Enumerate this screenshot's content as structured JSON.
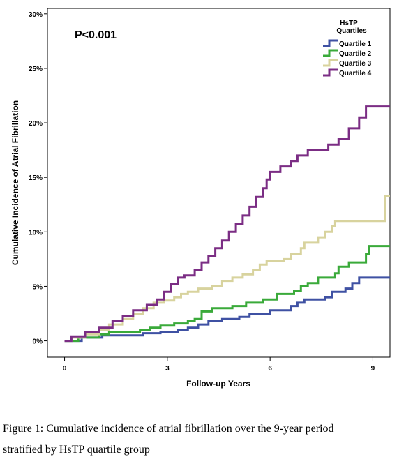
{
  "chart_data": {
    "type": "line",
    "step": true,
    "xlabel": "Follow-up Years",
    "ylabel": "Cumulative Incidence of Atrial Fibrillation",
    "xlim": [
      -0.5,
      9.5
    ],
    "ylim": [
      -0.015,
      0.305
    ],
    "xticks": [
      0,
      3,
      6,
      9
    ],
    "xtick_labels": [
      "0",
      "3",
      "6",
      "9"
    ],
    "yticks": [
      0,
      0.05,
      0.1,
      0.15,
      0.2,
      0.25,
      0.3
    ],
    "ytick_labels": [
      "0%",
      "5%",
      "10%",
      "15%",
      "20%",
      "25%",
      "30%"
    ],
    "grid": false,
    "annotation": "P<0.001",
    "legend": {
      "title_line1": "HsTP",
      "title_line2": "Quartiles",
      "placement": "top-right"
    },
    "series": [
      {
        "name": "Quartile 1",
        "color": "#3F51A3",
        "points": [
          [
            0,
            0
          ],
          [
            0.5,
            0.003
          ],
          [
            1.1,
            0.005
          ],
          [
            2.3,
            0.007
          ],
          [
            2.8,
            0.008
          ],
          [
            3.3,
            0.01
          ],
          [
            3.6,
            0.012
          ],
          [
            3.9,
            0.015
          ],
          [
            4.2,
            0.018
          ],
          [
            4.6,
            0.02
          ],
          [
            5.1,
            0.022
          ],
          [
            5.4,
            0.025
          ],
          [
            6.0,
            0.028
          ],
          [
            6.6,
            0.032
          ],
          [
            6.8,
            0.035
          ],
          [
            7.0,
            0.038
          ],
          [
            7.6,
            0.04
          ],
          [
            7.8,
            0.045
          ],
          [
            8.2,
            0.048
          ],
          [
            8.4,
            0.053
          ],
          [
            8.6,
            0.058
          ],
          [
            9.5,
            0.058
          ]
        ]
      },
      {
        "name": "Quartile 2",
        "color": "#3AAA3A",
        "points": [
          [
            0,
            0
          ],
          [
            0.4,
            0.003
          ],
          [
            1.0,
            0.006
          ],
          [
            1.3,
            0.008
          ],
          [
            2.2,
            0.01
          ],
          [
            2.5,
            0.012
          ],
          [
            2.8,
            0.014
          ],
          [
            3.2,
            0.016
          ],
          [
            3.6,
            0.018
          ],
          [
            3.8,
            0.02
          ],
          [
            4.0,
            0.027
          ],
          [
            4.3,
            0.03
          ],
          [
            4.9,
            0.032
          ],
          [
            5.3,
            0.035
          ],
          [
            5.8,
            0.038
          ],
          [
            6.2,
            0.043
          ],
          [
            6.7,
            0.046
          ],
          [
            6.9,
            0.05
          ],
          [
            7.1,
            0.053
          ],
          [
            7.4,
            0.058
          ],
          [
            7.9,
            0.062
          ],
          [
            8.0,
            0.068
          ],
          [
            8.3,
            0.072
          ],
          [
            8.8,
            0.08
          ],
          [
            8.9,
            0.087
          ],
          [
            9.5,
            0.087
          ]
        ]
      },
      {
        "name": "Quartile 3",
        "color": "#D8D39E",
        "points": [
          [
            0,
            0
          ],
          [
            0.2,
            0.003
          ],
          [
            0.6,
            0.006
          ],
          [
            1.0,
            0.01
          ],
          [
            1.3,
            0.015
          ],
          [
            1.7,
            0.02
          ],
          [
            2.0,
            0.025
          ],
          [
            2.3,
            0.03
          ],
          [
            2.6,
            0.035
          ],
          [
            2.9,
            0.037
          ],
          [
            3.2,
            0.04
          ],
          [
            3.4,
            0.043
          ],
          [
            3.6,
            0.045
          ],
          [
            3.9,
            0.048
          ],
          [
            4.3,
            0.05
          ],
          [
            4.6,
            0.055
          ],
          [
            4.9,
            0.058
          ],
          [
            5.2,
            0.061
          ],
          [
            5.5,
            0.065
          ],
          [
            5.7,
            0.07
          ],
          [
            5.9,
            0.073
          ],
          [
            6.4,
            0.075
          ],
          [
            6.6,
            0.08
          ],
          [
            6.9,
            0.085
          ],
          [
            7.0,
            0.09
          ],
          [
            7.4,
            0.095
          ],
          [
            7.6,
            0.1
          ],
          [
            7.8,
            0.105
          ],
          [
            7.9,
            0.11
          ],
          [
            9.3,
            0.11
          ],
          [
            9.35,
            0.133
          ],
          [
            9.5,
            0.133
          ]
        ]
      },
      {
        "name": "Quartile 4",
        "color": "#7B2D84",
        "points": [
          [
            0,
            0
          ],
          [
            0.2,
            0.004
          ],
          [
            0.6,
            0.008
          ],
          [
            1.0,
            0.012
          ],
          [
            1.4,
            0.018
          ],
          [
            1.7,
            0.023
          ],
          [
            2.0,
            0.028
          ],
          [
            2.4,
            0.033
          ],
          [
            2.7,
            0.038
          ],
          [
            2.9,
            0.045
          ],
          [
            3.1,
            0.052
          ],
          [
            3.3,
            0.058
          ],
          [
            3.5,
            0.06
          ],
          [
            3.8,
            0.065
          ],
          [
            4.0,
            0.072
          ],
          [
            4.2,
            0.078
          ],
          [
            4.4,
            0.085
          ],
          [
            4.6,
            0.092
          ],
          [
            4.8,
            0.1
          ],
          [
            5.0,
            0.107
          ],
          [
            5.2,
            0.115
          ],
          [
            5.4,
            0.123
          ],
          [
            5.6,
            0.132
          ],
          [
            5.8,
            0.14
          ],
          [
            5.9,
            0.148
          ],
          [
            6.0,
            0.155
          ],
          [
            6.3,
            0.16
          ],
          [
            6.6,
            0.165
          ],
          [
            6.8,
            0.17
          ],
          [
            7.1,
            0.175
          ],
          [
            7.7,
            0.18
          ],
          [
            8.0,
            0.185
          ],
          [
            8.3,
            0.195
          ],
          [
            8.6,
            0.205
          ],
          [
            8.8,
            0.215
          ],
          [
            9.5,
            0.215
          ]
        ]
      }
    ]
  },
  "caption": {
    "line1": "Figure 1: Cumulative incidence of atrial fibrillation over the 9-year period",
    "line2": "stratified by HsTP quartile group"
  }
}
